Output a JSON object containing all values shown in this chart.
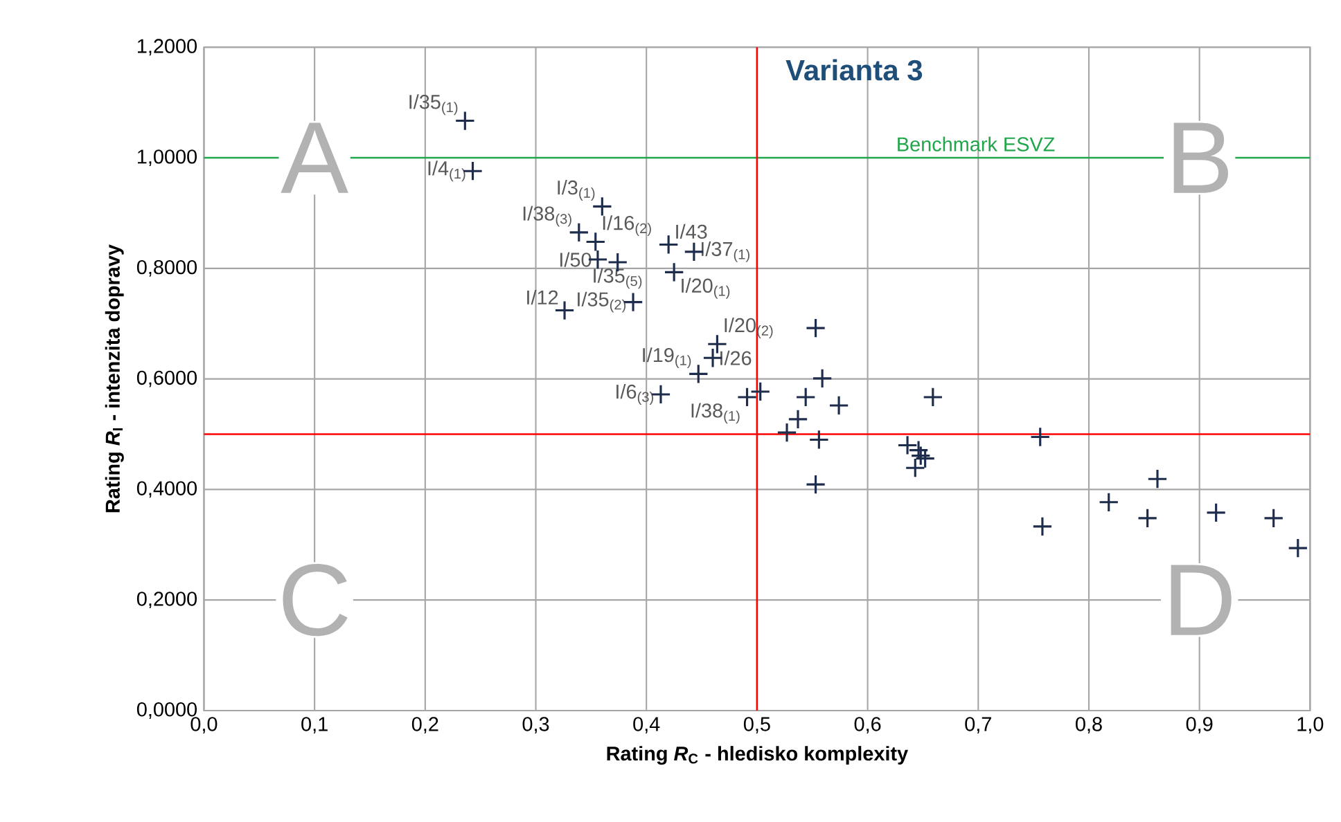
{
  "chart_data": {
    "type": "scatter",
    "title": "Varianta 3",
    "xlabel": "Rating *R*$_{C}$ - hledisko komplexity",
    "ylabel": "Rating *R*$_{I}$ - intenzita dopravy",
    "x": [
      0.236,
      0.243,
      0.36,
      0.339,
      0.354,
      0.356,
      0.374,
      0.42,
      0.443,
      0.425,
      0.326,
      0.388,
      0.464,
      0.46,
      0.447,
      0.413,
      0.491,
      0.503,
      0.553,
      0.559,
      0.544,
      0.574,
      0.537,
      0.527,
      0.556,
      0.553,
      0.659,
      0.636,
      0.646,
      0.652,
      0.643,
      0.648,
      0.756,
      0.758,
      0.862,
      0.818,
      0.853,
      0.915,
      0.967,
      0.989
    ],
    "values": [
      1.067,
      0.976,
      0.912,
      0.865,
      0.848,
      0.816,
      0.811,
      0.843,
      0.83,
      0.793,
      0.724,
      0.739,
      0.663,
      0.638,
      0.609,
      0.572,
      0.567,
      0.577,
      0.692,
      0.601,
      0.567,
      0.552,
      0.527,
      0.503,
      0.49,
      0.409,
      0.567,
      0.48,
      0.471,
      0.456,
      0.439,
      0.461,
      0.495,
      0.333,
      0.419,
      0.377,
      0.348,
      0.358,
      0.348,
      0.294
    ],
    "color": "#1f2d4d",
    "marker": "cross",
    "grid": true,
    "xlim": [
      0,
      1
    ],
    "ylim": [
      0,
      1.2
    ],
    "xticks": [
      {
        "value": 0,
        "label": "0,0"
      },
      {
        "value": 0.1,
        "label": "0,1"
      },
      {
        "value": 0.2,
        "label": "0,2"
      },
      {
        "value": 0.3,
        "label": "0,3"
      },
      {
        "value": 0.4,
        "label": "0,4"
      },
      {
        "value": 0.5,
        "label": "0,5"
      },
      {
        "value": 0.6,
        "label": "0,6"
      },
      {
        "value": 0.7,
        "label": "0,7"
      },
      {
        "value": 0.8,
        "label": "0,8"
      },
      {
        "value": 0.9,
        "label": "0,9"
      },
      {
        "value": 1,
        "label": "1,0"
      }
    ],
    "yticks": [
      {
        "value": 0,
        "label": "0,0000"
      },
      {
        "value": 0.2,
        "label": "0,2000"
      },
      {
        "value": 0.4,
        "label": "0,4000"
      },
      {
        "value": 0.6,
        "label": "0,6000"
      },
      {
        "value": 0.8,
        "label": "0,8000"
      },
      {
        "value": 1,
        "label": "1,0000"
      },
      {
        "value": 1.2,
        "label": "1,2000"
      }
    ],
    "ref_lines": [
      {
        "axis": "y",
        "value": 1.0,
        "label": "Benchmark ESVZ",
        "color": "#1fa64a"
      },
      {
        "axis": "x",
        "value": 0.5,
        "color": "#ff0000"
      },
      {
        "axis": "y",
        "value": 0.5,
        "color": "#ff0000"
      }
    ],
    "annotations": [
      {
        "text": "I/35$_{(1)}$",
        "x": 0.236,
        "y": 1.067
      },
      {
        "text": "I/4$_{(1)}$",
        "x": 0.243,
        "y": 0.976
      },
      {
        "text": "I/3$_{(1)}$",
        "x": 0.36,
        "y": 0.912
      },
      {
        "text": "I/38$_{(3)}$",
        "x": 0.339,
        "y": 0.865
      },
      {
        "text": "I/16$_{(2)}$",
        "x": 0.354,
        "y": 0.848
      },
      {
        "text": "I/50",
        "x": 0.356,
        "y": 0.816
      },
      {
        "text": "I/35$_{(5)}$",
        "x": 0.374,
        "y": 0.811
      },
      {
        "text": "I/43",
        "x": 0.42,
        "y": 0.843
      },
      {
        "text": "I/37$_{(1)}$",
        "x": 0.443,
        "y": 0.83
      },
      {
        "text": "I/20$_{(1)}$",
        "x": 0.425,
        "y": 0.793
      },
      {
        "text": "I/12",
        "x": 0.326,
        "y": 0.724
      },
      {
        "text": "I/35$_{(2)}$",
        "x": 0.388,
        "y": 0.739
      },
      {
        "text": "I/20$_{(2)}$",
        "x": 0.464,
        "y": 0.663
      },
      {
        "text": "I/26",
        "x": 0.46,
        "y": 0.638
      },
      {
        "text": "I/19$_{(1)}$",
        "x": 0.447,
        "y": 0.609
      },
      {
        "text": "I/6$_{(3)}$",
        "x": 0.413,
        "y": 0.572
      },
      {
        "text": "I/38$_{(1)}$",
        "x": 0.491,
        "y": 0.567
      },
      "A",
      "B",
      "C",
      "D"
    ]
  }
}
